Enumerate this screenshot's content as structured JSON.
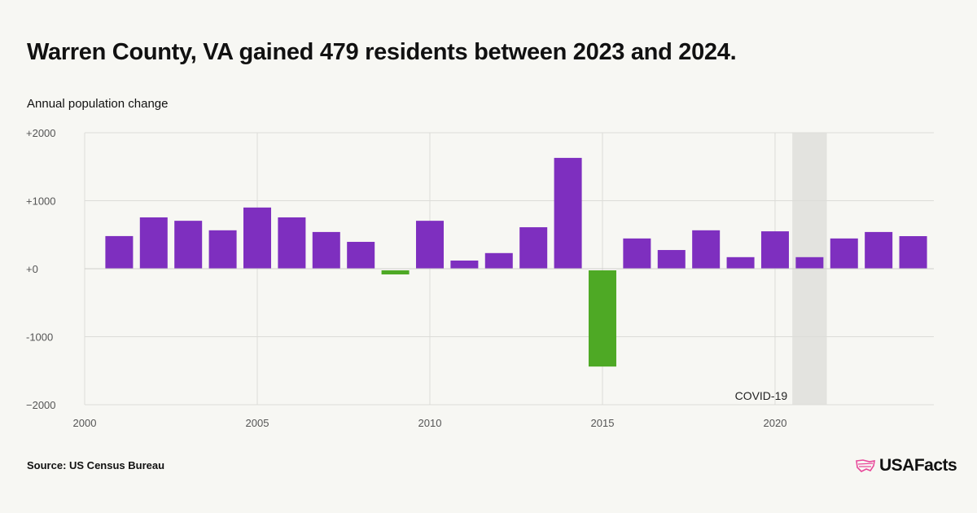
{
  "title": "Warren County, VA gained 479 residents between 2023 and 2024.",
  "subtitle": "Annual population change",
  "source": "Source: US Census Bureau",
  "logo": "USAFacts",
  "chart_data": {
    "type": "bar",
    "ylabel": "Annual population change",
    "ylim": [
      -2000,
      2000
    ],
    "yticks": [
      "+2000",
      "+1000",
      "+0",
      "-1000",
      "−2000"
    ],
    "ytick_values": [
      2000,
      1000,
      0,
      -1000,
      -2000
    ],
    "xticks": [
      "2000",
      "2005",
      "2010",
      "2015",
      "2020"
    ],
    "xtick_values": [
      2000,
      2005,
      2010,
      2015,
      2020
    ],
    "xlim": [
      2000,
      2024.6
    ],
    "grid": true,
    "categories": [
      2001,
      2002,
      2003,
      2004,
      2005,
      2006,
      2007,
      2008,
      2009,
      2010,
      2011,
      2012,
      2013,
      2014,
      2015,
      2016,
      2017,
      2018,
      2019,
      2020,
      2021,
      2022,
      2023,
      2024
    ],
    "values": [
      480,
      755,
      705,
      565,
      900,
      755,
      540,
      395,
      -60,
      705,
      120,
      230,
      610,
      1630,
      -1415,
      445,
      275,
      565,
      170,
      550,
      170,
      445,
      540,
      479
    ],
    "colors": {
      "positive": "#7e2fbf",
      "negative": "#4ea925",
      "shade": "#e3e3df",
      "grid": "#dcdcd8"
    },
    "annotation": {
      "label": "COVID-19",
      "start": 2020.5,
      "end": 2021.5
    }
  }
}
